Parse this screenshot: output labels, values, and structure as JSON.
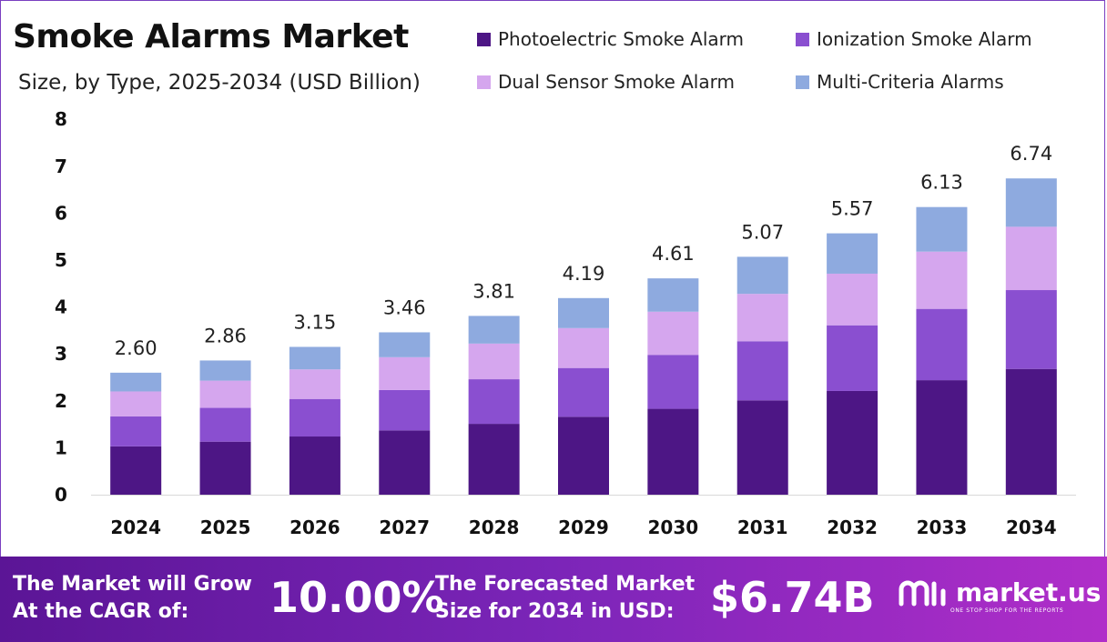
{
  "header": {
    "title": "Smoke Alarms Market",
    "subtitle": "Size, by Type, 2025-2034 (USD Billion)"
  },
  "chart_data": {
    "type": "bar",
    "stacked": true,
    "categories": [
      "2024",
      "2025",
      "2026",
      "2027",
      "2028",
      "2029",
      "2030",
      "2031",
      "2032",
      "2033",
      "2034"
    ],
    "series": [
      {
        "name": "Photoelectric Smoke Alarm",
        "color": "#4d1685",
        "values": [
          1.03,
          1.13,
          1.24,
          1.37,
          1.51,
          1.66,
          1.83,
          2.01,
          2.21,
          2.44,
          2.68
        ]
      },
      {
        "name": "Ionization Smoke Alarm",
        "color": "#8a4fd0",
        "values": [
          0.64,
          0.72,
          0.8,
          0.86,
          0.95,
          1.04,
          1.15,
          1.26,
          1.4,
          1.52,
          1.68
        ]
      },
      {
        "name": "Dual Sensor Smoke Alarm",
        "color": "#d5a6ee",
        "values": [
          0.53,
          0.58,
          0.63,
          0.7,
          0.76,
          0.85,
          0.92,
          1.01,
          1.1,
          1.22,
          1.35
        ]
      },
      {
        "name": "Multi-Criteria Alarms",
        "color": "#8eaadf",
        "values": [
          0.4,
          0.43,
          0.48,
          0.53,
          0.59,
          0.64,
          0.71,
          0.79,
          0.86,
          0.95,
          1.03
        ]
      }
    ],
    "totals": [
      "2.60",
      "2.86",
      "3.15",
      "3.46",
      "3.81",
      "4.19",
      "4.61",
      "5.07",
      "5.57",
      "6.13",
      "6.74"
    ],
    "y_ticks": [
      "0",
      "1",
      "2",
      "3",
      "4",
      "5",
      "6",
      "7",
      "8"
    ],
    "ylim": [
      0,
      8
    ],
    "grid": false,
    "legend_position": "top"
  },
  "footer": {
    "cagr_label_line1": "The Market will Grow",
    "cagr_label_line2": "At the CAGR of:",
    "cagr_value": "10.00%",
    "forecast_label_line1": "The Forecasted Market",
    "forecast_label_line2": "Size for 2034 in USD:",
    "forecast_value": "$6.74B",
    "logo_text": "market.us",
    "logo_tagline": "ONE STOP SHOP FOR THE REPORTS"
  }
}
